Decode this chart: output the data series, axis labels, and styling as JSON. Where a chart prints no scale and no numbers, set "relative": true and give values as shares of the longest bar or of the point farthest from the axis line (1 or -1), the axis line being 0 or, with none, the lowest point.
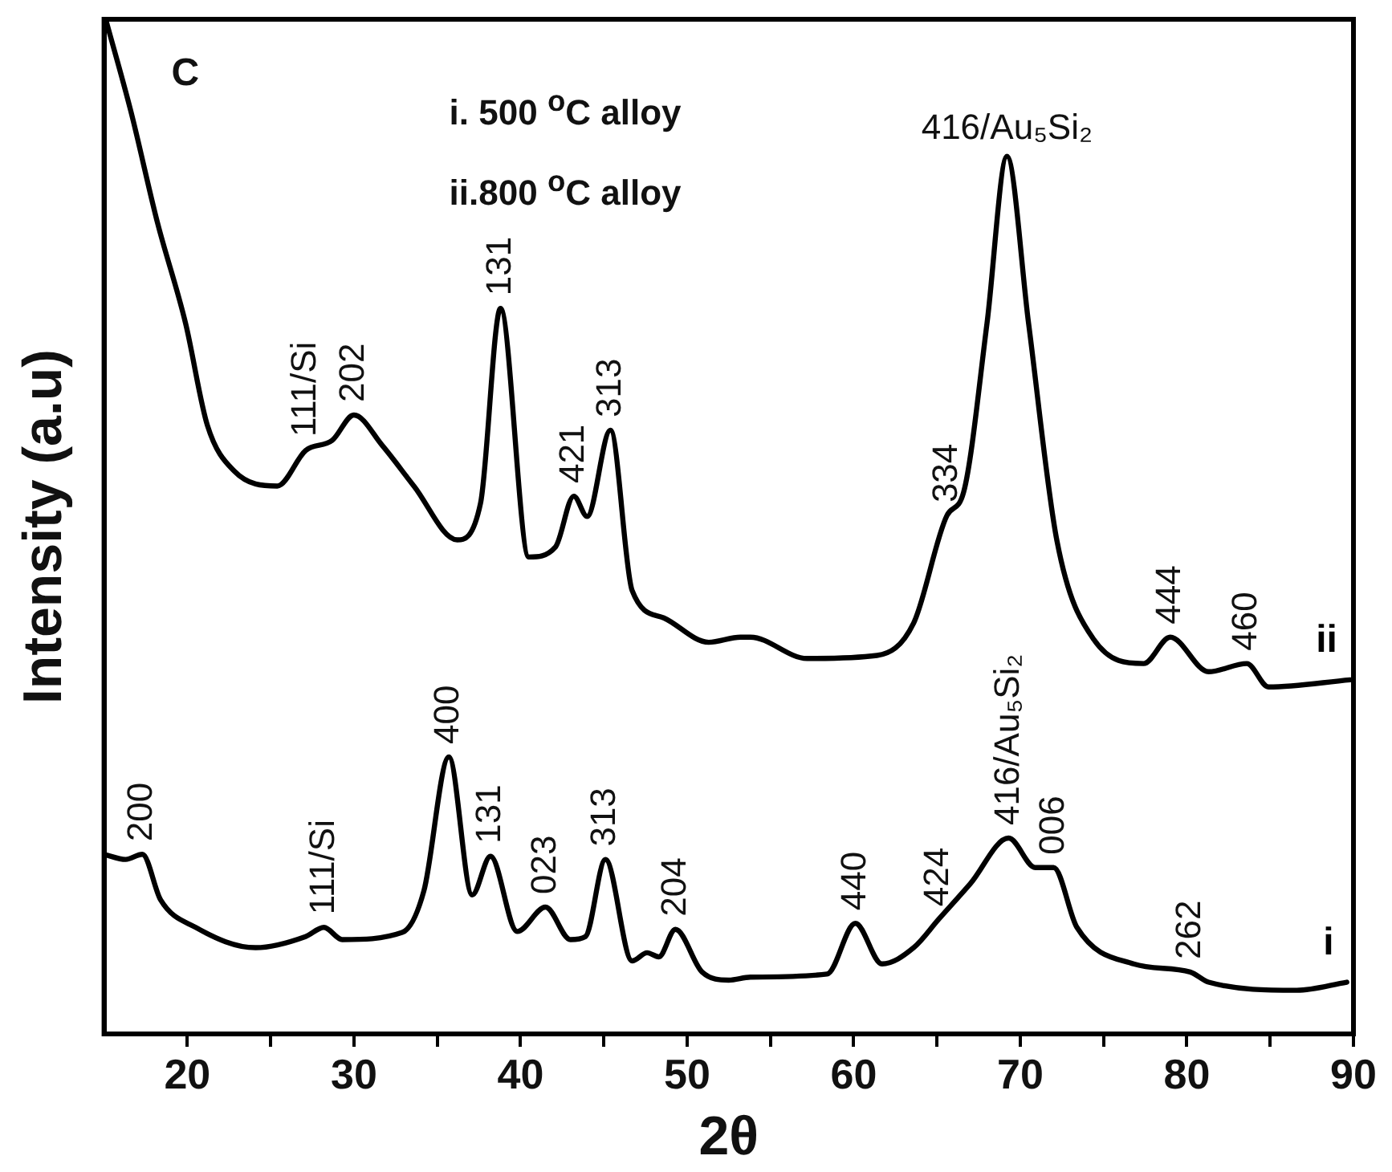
{
  "chart_data": {
    "type": "line",
    "relative": true,
    "xlabel": "2θ",
    "ylabel": "Intensity (a.u)",
    "xlim": [
      15,
      90
    ],
    "xticks": [
      20,
      {
        "value": 25,
        "label": null
      },
      30,
      {
        "value": 35,
        "label": null
      },
      40,
      {
        "value": 45,
        "label": null
      },
      50,
      {
        "value": 55,
        "label": null
      },
      60,
      {
        "value": 65,
        "label": null
      },
      70,
      {
        "value": 75,
        "label": null
      },
      80,
      {
        "value": 85,
        "label": null
      },
      90
    ],
    "grid": false,
    "legend": false,
    "marker": "none",
    "line_style": "solid",
    "series": [
      {
        "name": "ii",
        "color": "#000000",
        "x": [
          15.1,
          16.6,
          18.2,
          19.9,
          21.2,
          22.8,
          25.4,
          27.1,
          28.7,
          30.0,
          31.7,
          33.6,
          36.2,
          37.6,
          38.8,
          40.5,
          42.1,
          43.2,
          44.0,
          45.4,
          46.7,
          48.6,
          51.3,
          53.2,
          53.8,
          57.2,
          61.4,
          63.6,
          65.6,
          66.6,
          68.0,
          69.2,
          70.5,
          72.2,
          74.4,
          77.4,
          79.0,
          81.3,
          83.6,
          84.9,
          89.8
        ],
        "values": [
          1.0,
          0.91,
          0.8,
          0.7,
          0.6,
          0.555,
          0.54,
          0.575,
          0.585,
          0.61,
          0.58,
          0.54,
          0.487,
          0.523,
          0.715,
          0.47,
          0.48,
          0.53,
          0.51,
          0.595,
          0.437,
          0.41,
          0.386,
          0.391,
          0.391,
          0.37,
          0.373,
          0.405,
          0.511,
          0.534,
          0.7,
          0.865,
          0.7,
          0.486,
          0.389,
          0.365,
          0.391,
          0.357,
          0.365,
          0.342,
          0.349
        ]
      },
      {
        "name": "i",
        "color": "#000000",
        "x": [
          15.0,
          16.3,
          17.3,
          18.4,
          20.5,
          24.1,
          27.1,
          28.2,
          29.3,
          32.9,
          34.2,
          35.7,
          37.1,
          38.2,
          39.8,
          41.5,
          43.0,
          43.9,
          45.1,
          46.7,
          47.6,
          48.3,
          49.3,
          50.9,
          52.5,
          53.8,
          58.4,
          60.1,
          61.7,
          63.6,
          65.1,
          67.0,
          69.3,
          70.9,
          72.0,
          73.4,
          76.8,
          80.2,
          81.3,
          86.6,
          89.6
        ],
        "values": [
          0.177,
          0.172,
          0.177,
          0.132,
          0.105,
          0.085,
          0.096,
          0.105,
          0.093,
          0.1,
          0.141,
          0.273,
          0.137,
          0.175,
          0.101,
          0.125,
          0.093,
          0.096,
          0.172,
          0.072,
          0.08,
          0.076,
          0.103,
          0.061,
          0.053,
          0.056,
          0.059,
          0.109,
          0.069,
          0.085,
          0.113,
          0.148,
          0.193,
          0.164,
          0.164,
          0.105,
          0.069,
          0.061,
          0.051,
          0.043,
          0.051
        ]
      }
    ],
    "annotations": [
      "C",
      "i. 500 $^{o}$C alloy",
      "ii.800 $^{o}$C alloy",
      {
        "text": "111/Si",
        "x": 27.1,
        "y": 0.576
      },
      {
        "text": "202",
        "x": 30.0,
        "y": 0.61
      },
      {
        "text": "131",
        "x": 38.8,
        "y": 0.715
      },
      {
        "text": "421",
        "x": 43.2,
        "y": 0.53
      },
      {
        "text": "313",
        "x": 45.4,
        "y": 0.595
      },
      {
        "text": "334",
        "x": 65.6,
        "y": 0.511
      },
      {
        "text": "416/Au₅Si₂",
        "x": 69.2,
        "y": 0.865
      },
      {
        "text": "444",
        "x": 79.0,
        "y": 0.391
      },
      {
        "text": "460",
        "x": 83.6,
        "y": 0.365
      },
      {
        "text": "200",
        "x": 17.3,
        "y": 0.177
      },
      {
        "text": "111/Si",
        "x": 28.2,
        "y": 0.105
      },
      {
        "text": "400",
        "x": 35.7,
        "y": 0.273
      },
      {
        "text": "131",
        "x": 38.2,
        "y": 0.175
      },
      {
        "text": "023",
        "x": 41.5,
        "y": 0.125
      },
      {
        "text": "313",
        "x": 45.1,
        "y": 0.172
      },
      {
        "text": "204",
        "x": 49.3,
        "y": 0.103
      },
      {
        "text": "440",
        "x": 60.1,
        "y": 0.109
      },
      {
        "text": "424",
        "x": 65.1,
        "y": 0.113
      },
      {
        "text": "416/Au₅Si₂",
        "x": 69.3,
        "y": 0.193
      },
      {
        "text": "006",
        "x": 72.0,
        "y": 0.164
      },
      {
        "text": "262",
        "x": 80.2,
        "y": 0.061
      }
    ]
  }
}
